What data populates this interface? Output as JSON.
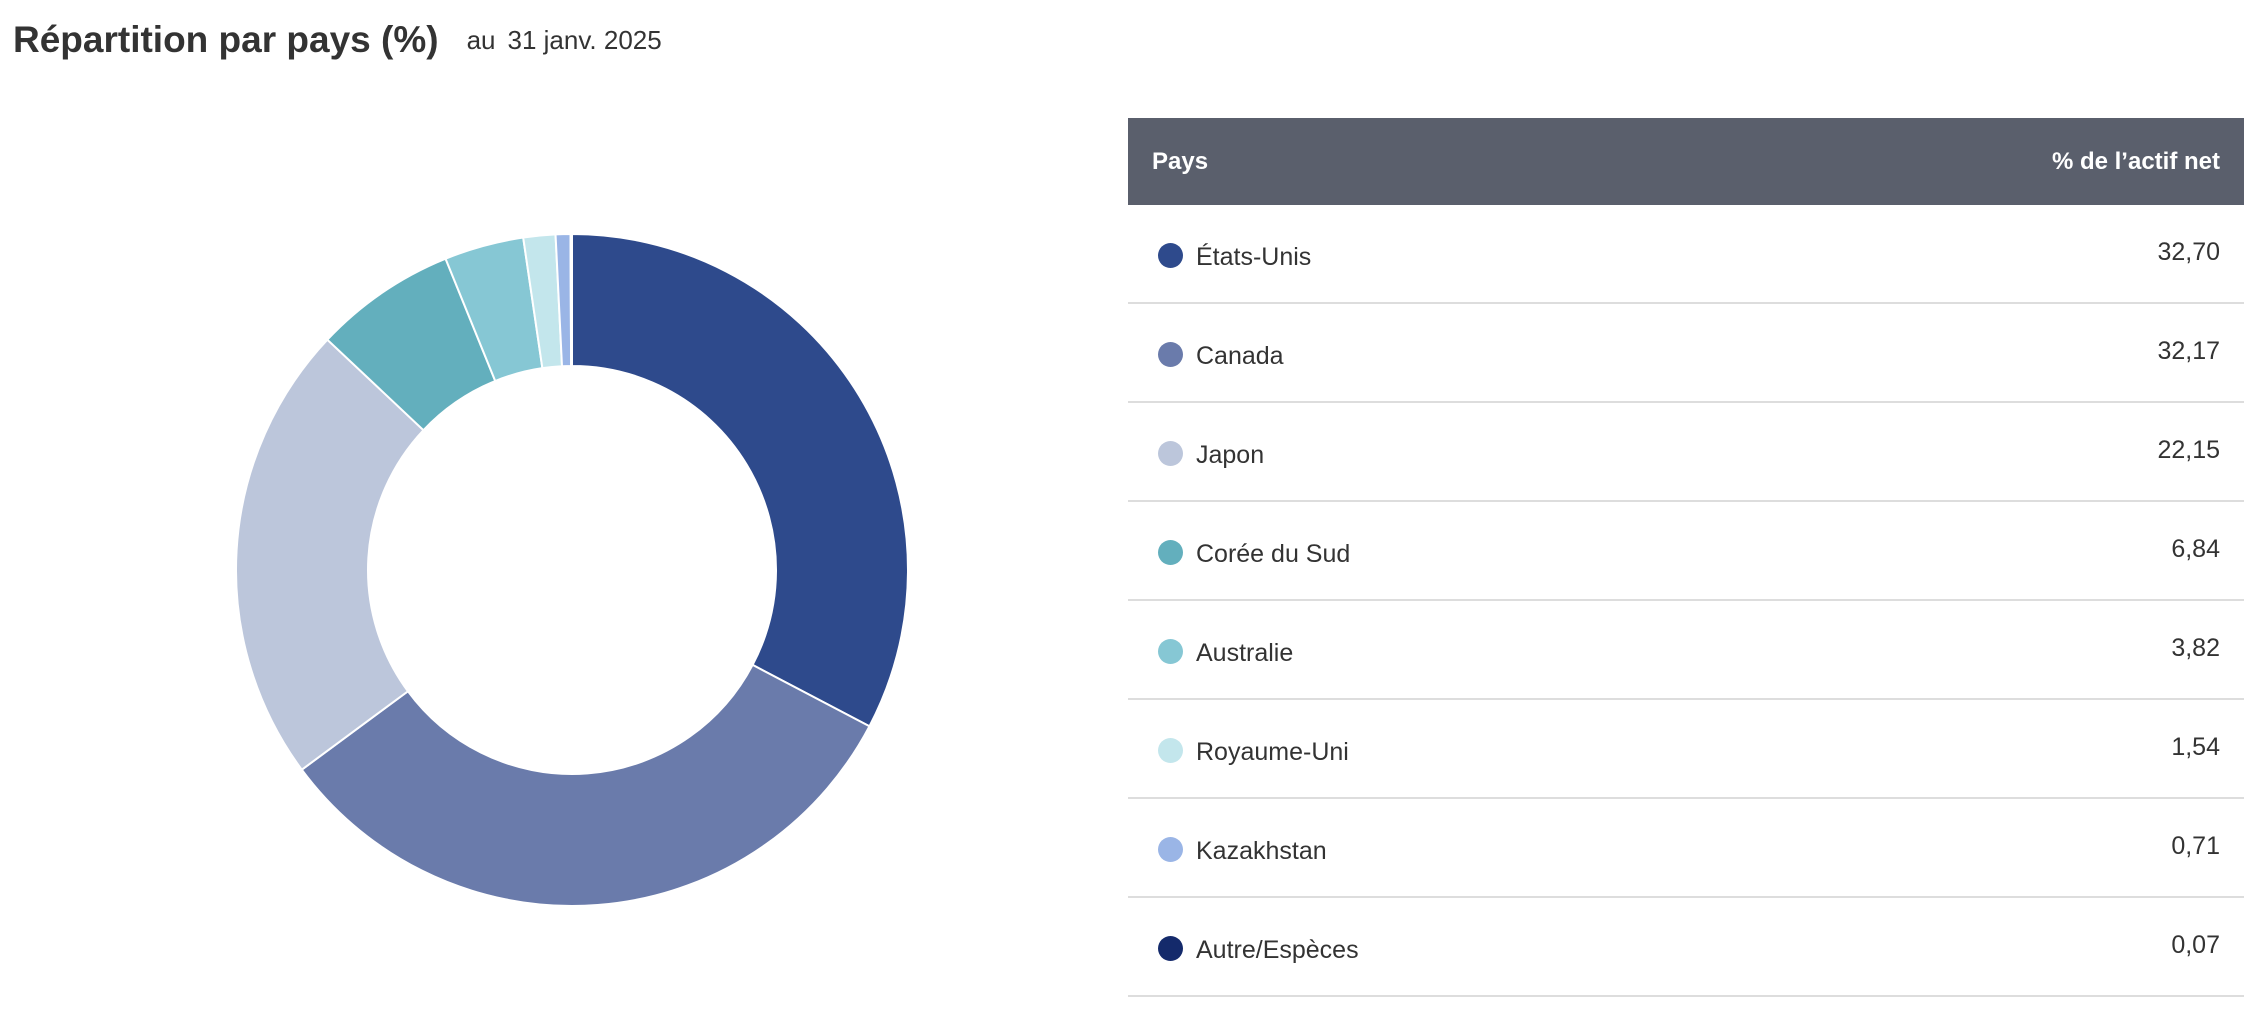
{
  "header": {
    "title": "Répartition par pays (%)",
    "as_of_label": "au",
    "as_of_date": "31 janv. 2025"
  },
  "table": {
    "col_country": "Pays",
    "col_value": "% de l’actif net"
  },
  "chart_data": {
    "type": "pie",
    "title": "Répartition par pays (%)",
    "categories": [
      "États-Unis",
      "Canada",
      "Japon",
      "Corée du Sud",
      "Australie",
      "Royaume-Uni",
      "Kazakhstan",
      "Autre/Espèces"
    ],
    "values": [
      32.7,
      32.17,
      22.15,
      6.84,
      3.82,
      1.54,
      0.71,
      0.07
    ],
    "value_labels": [
      "32,70",
      "32,17",
      "22,15",
      "6,84",
      "3,82",
      "1,54",
      "0,71",
      "0,07"
    ],
    "colors": [
      "#2e4a8c",
      "#6a7bab",
      "#bcc6db",
      "#63afbd",
      "#86c7d4",
      "#c3e6ec",
      "#9ab5e6",
      "#142a6b"
    ],
    "legend": "right",
    "donut": true
  }
}
